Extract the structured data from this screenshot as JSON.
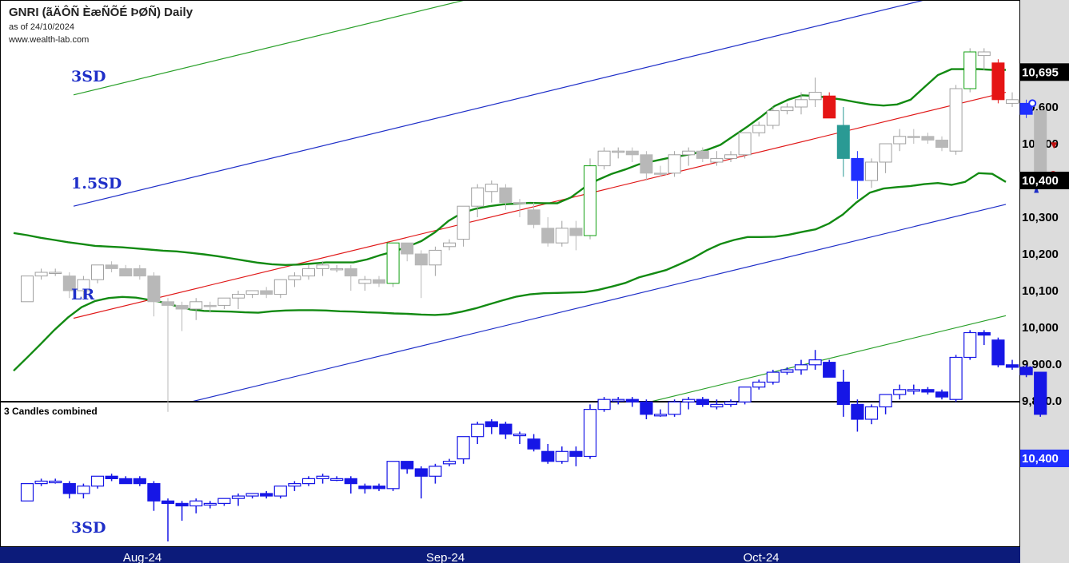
{
  "header": {
    "title": "GNRI (ãÄÔÑ ÈæÑÕÉ ÞØÑ) Daily",
    "as_of": "as of 24/10/2024",
    "source": "www.wealth-lab.com"
  },
  "chart_data": [
    {
      "type": "candlestick",
      "panel": "price",
      "ylim": [
        9740,
        10790
      ],
      "y_ticks": [
        "9,800.0",
        "9,900.0",
        "10,000",
        "10,100",
        "10,200",
        "10,300",
        "10,400",
        "10,500",
        "10,600"
      ],
      "last_price_badges": [
        "10,695",
        "10,400"
      ],
      "x_labels": [
        "Aug-24",
        "Sep-24",
        "Oct-24"
      ],
      "channel_labels": [
        "3SD",
        "1.5SD",
        "LR"
      ],
      "regression_channel": {
        "lr": [
          10025,
          10640
        ],
        "sd_1_5": [
          10330,
          10945
        ],
        "sd_minus_1_5": [
          9720,
          10335
        ],
        "sd_3": [
          10633,
          11248
        ],
        "sd_minus_3": [
          9417,
          10032
        ]
      },
      "candles": [
        {
          "o": 10070,
          "h": 10140,
          "l": 10070,
          "c": 10140,
          "color": "#ffffff"
        },
        {
          "o": 10140,
          "h": 10160,
          "l": 10130,
          "c": 10150,
          "color": "#ffffff"
        },
        {
          "o": 10150,
          "h": 10160,
          "l": 10140,
          "c": 10150,
          "color": "#ffffff"
        },
        {
          "o": 10140,
          "h": 10150,
          "l": 10080,
          "c": 10100,
          "color": "#b8b8b8"
        },
        {
          "o": 10100,
          "h": 10140,
          "l": 10080,
          "c": 10130,
          "color": "#ffffff"
        },
        {
          "o": 10130,
          "h": 10170,
          "l": 10120,
          "c": 10170,
          "color": "#ffffff"
        },
        {
          "o": 10170,
          "h": 10180,
          "l": 10150,
          "c": 10160,
          "color": "#b8b8b8"
        },
        {
          "o": 10160,
          "h": 10170,
          "l": 10140,
          "c": 10140,
          "color": "#b8b8b8"
        },
        {
          "o": 10160,
          "h": 10170,
          "l": 10130,
          "c": 10140,
          "color": "#b8b8b8"
        },
        {
          "o": 10140,
          "h": 10150,
          "l": 10030,
          "c": 10070,
          "color": "#b8b8b8"
        },
        {
          "o": 10070,
          "h": 10080,
          "l": 9770,
          "c": 10060,
          "color": "#b8b8b8"
        },
        {
          "o": 10060,
          "h": 10070,
          "l": 9990,
          "c": 10050,
          "color": "#b8b8b8"
        },
        {
          "o": 10050,
          "h": 10080,
          "l": 10020,
          "c": 10070,
          "color": "#ffffff"
        },
        {
          "o": 10060,
          "h": 10070,
          "l": 10040,
          "c": 10060,
          "color": "#b8b8b8"
        },
        {
          "o": 10060,
          "h": 10080,
          "l": 10050,
          "c": 10080,
          "color": "#ffffff"
        },
        {
          "o": 10080,
          "h": 10100,
          "l": 10050,
          "c": 10090,
          "color": "#ffffff"
        },
        {
          "o": 10090,
          "h": 10100,
          "l": 10080,
          "c": 10100,
          "color": "#ffffff"
        },
        {
          "o": 10100,
          "h": 10110,
          "l": 10080,
          "c": 10090,
          "color": "#b8b8b8"
        },
        {
          "o": 10090,
          "h": 10130,
          "l": 10080,
          "c": 10130,
          "color": "#ffffff"
        },
        {
          "o": 10130,
          "h": 10150,
          "l": 10110,
          "c": 10140,
          "color": "#ffffff"
        },
        {
          "o": 10140,
          "h": 10170,
          "l": 10130,
          "c": 10160,
          "color": "#ffffff"
        },
        {
          "o": 10160,
          "h": 10180,
          "l": 10140,
          "c": 10170,
          "color": "#ffffff"
        },
        {
          "o": 10160,
          "h": 10170,
          "l": 10150,
          "c": 10160,
          "color": "#ffffff"
        },
        {
          "o": 10160,
          "h": 10170,
          "l": 10100,
          "c": 10140,
          "color": "#b8b8b8"
        },
        {
          "o": 10130,
          "h": 10140,
          "l": 10100,
          "c": 10120,
          "color": "#ffffff"
        },
        {
          "o": 10130,
          "h": 10140,
          "l": 10110,
          "c": 10120,
          "color": "#b8b8b8"
        },
        {
          "o": 10120,
          "h": 10230,
          "l": 10110,
          "c": 10230,
          "color": "#ffffff",
          "border": "#11a011"
        },
        {
          "o": 10230,
          "h": 10230,
          "l": 10180,
          "c": 10200,
          "color": "#b8b8b8"
        },
        {
          "o": 10200,
          "h": 10210,
          "l": 10080,
          "c": 10170,
          "color": "#b8b8b8"
        },
        {
          "o": 10170,
          "h": 10220,
          "l": 10140,
          "c": 10210,
          "color": "#ffffff"
        },
        {
          "o": 10220,
          "h": 10240,
          "l": 10210,
          "c": 10230,
          "color": "#ffffff"
        },
        {
          "o": 10240,
          "h": 10330,
          "l": 10220,
          "c": 10330,
          "color": "#ffffff"
        },
        {
          "o": 10330,
          "h": 10390,
          "l": 10300,
          "c": 10380,
          "color": "#ffffff"
        },
        {
          "o": 10390,
          "h": 10400,
          "l": 10340,
          "c": 10370,
          "color": "#ffffff"
        },
        {
          "o": 10380,
          "h": 10390,
          "l": 10320,
          "c": 10340,
          "color": "#b8b8b8"
        },
        {
          "o": 10340,
          "h": 10350,
          "l": 10300,
          "c": 10340,
          "color": "#b8b8b8"
        },
        {
          "o": 10320,
          "h": 10340,
          "l": 10270,
          "c": 10280,
          "color": "#b8b8b8"
        },
        {
          "o": 10270,
          "h": 10300,
          "l": 10220,
          "c": 10230,
          "color": "#b8b8b8"
        },
        {
          "o": 10230,
          "h": 10290,
          "l": 10220,
          "c": 10270,
          "color": "#ffffff"
        },
        {
          "o": 10270,
          "h": 10290,
          "l": 10210,
          "c": 10250,
          "color": "#b8b8b8"
        },
        {
          "o": 10250,
          "h": 10460,
          "l": 10240,
          "c": 10440,
          "color": "#ffffff",
          "border": "#11a011"
        },
        {
          "o": 10440,
          "h": 10490,
          "l": 10430,
          "c": 10480,
          "color": "#ffffff"
        },
        {
          "o": 10480,
          "h": 10490,
          "l": 10460,
          "c": 10480,
          "color": "#ffffff"
        },
        {
          "o": 10480,
          "h": 10490,
          "l": 10450,
          "c": 10470,
          "color": "#b8b8b8"
        },
        {
          "o": 10470,
          "h": 10480,
          "l": 10400,
          "c": 10420,
          "color": "#b8b8b8"
        },
        {
          "o": 10420,
          "h": 10440,
          "l": 10410,
          "c": 10420,
          "color": "#b8b8b8"
        },
        {
          "o": 10420,
          "h": 10480,
          "l": 10410,
          "c": 10470,
          "color": "#ffffff"
        },
        {
          "o": 10470,
          "h": 10490,
          "l": 10440,
          "c": 10480,
          "color": "#ffffff"
        },
        {
          "o": 10480,
          "h": 10490,
          "l": 10450,
          "c": 10460,
          "color": "#b8b8b8"
        },
        {
          "o": 10450,
          "h": 10480,
          "l": 10440,
          "c": 10460,
          "color": "#ffffff"
        },
        {
          "o": 10460,
          "h": 10480,
          "l": 10450,
          "c": 10470,
          "color": "#ffffff"
        },
        {
          "o": 10470,
          "h": 10530,
          "l": 10460,
          "c": 10530,
          "color": "#ffffff"
        },
        {
          "o": 10530,
          "h": 10560,
          "l": 10520,
          "c": 10550,
          "color": "#ffffff"
        },
        {
          "o": 10550,
          "h": 10600,
          "l": 10540,
          "c": 10590,
          "color": "#ffffff"
        },
        {
          "o": 10590,
          "h": 10610,
          "l": 10580,
          "c": 10600,
          "color": "#ffffff"
        },
        {
          "o": 10600,
          "h": 10640,
          "l": 10580,
          "c": 10620,
          "color": "#ffffff"
        },
        {
          "o": 10620,
          "h": 10680,
          "l": 10600,
          "c": 10640,
          "color": "#ffffff"
        },
        {
          "o": 10630,
          "h": 10640,
          "l": 10570,
          "c": 10570,
          "color": "#e51515"
        },
        {
          "o": 10550,
          "h": 10600,
          "l": 10410,
          "c": 10460,
          "color": "#2a9a94"
        },
        {
          "o": 10460,
          "h": 10480,
          "l": 10350,
          "c": 10400,
          "color": "#1f2fff"
        },
        {
          "o": 10400,
          "h": 10460,
          "l": 10380,
          "c": 10450,
          "color": "#ffffff"
        },
        {
          "o": 10450,
          "h": 10500,
          "l": 10420,
          "c": 10500,
          "color": "#ffffff"
        },
        {
          "o": 10500,
          "h": 10540,
          "l": 10480,
          "c": 10520,
          "color": "#ffffff"
        },
        {
          "o": 10520,
          "h": 10540,
          "l": 10500,
          "c": 10520,
          "color": "#b8b8b8"
        },
        {
          "o": 10520,
          "h": 10530,
          "l": 10500,
          "c": 10510,
          "color": "#b8b8b8"
        },
        {
          "o": 10510,
          "h": 10520,
          "l": 10480,
          "c": 10490,
          "color": "#b8b8b8"
        },
        {
          "o": 10480,
          "h": 10660,
          "l": 10470,
          "c": 10650,
          "color": "#ffffff"
        },
        {
          "o": 10650,
          "h": 10760,
          "l": 10640,
          "c": 10750,
          "color": "#ffffff",
          "border": "#11a011"
        },
        {
          "o": 10750,
          "h": 10760,
          "l": 10700,
          "c": 10740,
          "color": "#ffffff"
        },
        {
          "o": 10720,
          "h": 10730,
          "l": 10610,
          "c": 10620,
          "color": "#e51515"
        },
        {
          "o": 10620,
          "h": 10640,
          "l": 10600,
          "c": 10610,
          "color": "#ffffff"
        },
        {
          "o": 10610,
          "h": 10620,
          "l": 10570,
          "c": 10580,
          "color": "#1f2fff"
        },
        {
          "o": 10590,
          "h": 10590,
          "l": 10410,
          "c": 10420,
          "color": "#b8b8b8"
        }
      ],
      "bollinger_upper": [
        10257,
        10251,
        10244,
        10238,
        10232,
        10227,
        10222,
        10220,
        10218,
        10215,
        10212,
        10209,
        10207,
        10203,
        10199,
        10194,
        10188,
        10182,
        10176,
        10172,
        10170,
        10171,
        10174,
        10177,
        10177,
        10177,
        10185,
        10197,
        10207,
        10220,
        10235,
        10259,
        10290,
        10312,
        10323,
        10330,
        10335,
        10337,
        10339,
        10338,
        10338,
        10354,
        10381,
        10402,
        10418,
        10430,
        10444,
        10452,
        10460,
        10466,
        10473,
        10483,
        10497,
        10522,
        10547,
        10574,
        10603,
        10620,
        10632,
        10630,
        10625,
        10620,
        10613,
        10607,
        10604,
        10607,
        10620,
        10654,
        10687,
        10703,
        10703,
        10703,
        10701,
        10701
      ],
      "bollinger_lower": [
        9882,
        9918,
        9955,
        9993,
        10027,
        10055,
        10072,
        10080,
        10083,
        10081,
        10075,
        10068,
        10058,
        10049,
        10045,
        10044,
        10043,
        10041,
        10040,
        10044,
        10046,
        10047,
        10047,
        10046,
        10044,
        10043,
        10041,
        10040,
        10038,
        10037,
        10035,
        10034,
        10036,
        10043,
        10052,
        10063,
        10074,
        10084,
        10090,
        10093,
        10094,
        10095,
        10096,
        10102,
        10111,
        10121,
        10136,
        10146,
        10156,
        10172,
        10189,
        10210,
        10227,
        10238,
        10246,
        10246,
        10247,
        10252,
        10260,
        10267,
        10283,
        10307,
        10340,
        10367,
        10378,
        10382,
        10385,
        10390,
        10393,
        10388,
        10396,
        10420,
        10418,
        10396
      ]
    },
    {
      "type": "candlestick",
      "panel": "3 Candles combined",
      "title": "3 Candles combined",
      "color": "#1616e6",
      "channel_label": "3SD",
      "last_price_badge": "10,400"
    }
  ]
}
